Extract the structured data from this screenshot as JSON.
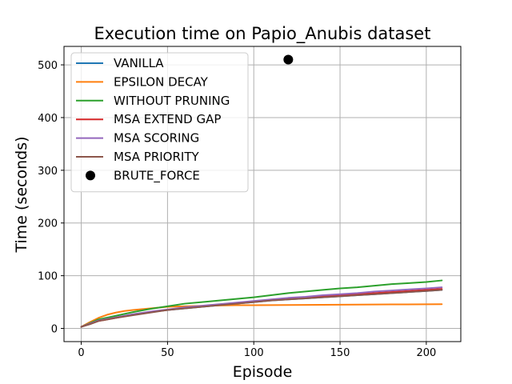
{
  "chart_data": {
    "type": "line",
    "title": "Execution time on Papio_Anubis dataset",
    "xlabel": "Episode",
    "ylabel": "Time (seconds)",
    "xlim": [
      -10,
      220
    ],
    "ylim": [
      -25,
      535
    ],
    "xticks": [
      0,
      50,
      100,
      150,
      200
    ],
    "yticks": [
      0,
      100,
      200,
      300,
      400,
      500
    ],
    "grid": true,
    "legend_position": "top-left",
    "series": [
      {
        "name": "VANILLA",
        "color": "#1f77b4",
        "kind": "line",
        "x": [
          0,
          5,
          10,
          20,
          30,
          40,
          50,
          60,
          70,
          80,
          90,
          100,
          110,
          120,
          130,
          140,
          150,
          160,
          170,
          180,
          190,
          200,
          209
        ],
        "y": [
          3,
          9,
          15,
          21,
          26,
          31,
          35,
          38,
          41,
          44,
          47,
          50,
          53,
          55,
          57,
          59,
          61,
          63,
          65,
          67,
          69,
          71,
          73
        ]
      },
      {
        "name": "EPSILON DECAY",
        "color": "#ff7f0e",
        "kind": "line",
        "x": [
          0,
          5,
          10,
          15,
          20,
          25,
          30,
          40,
          50,
          60,
          70,
          80,
          90,
          100,
          120,
          150,
          180,
          209
        ],
        "y": [
          3,
          12,
          20,
          26,
          30,
          33,
          35,
          38,
          41,
          42,
          43,
          43.5,
          44,
          44,
          44.5,
          45,
          45.5,
          46
        ]
      },
      {
        "name": "WITHOUT PRUNING",
        "color": "#2ca02c",
        "kind": "line",
        "x": [
          0,
          5,
          10,
          20,
          30,
          40,
          50,
          60,
          70,
          80,
          90,
          100,
          110,
          120,
          130,
          140,
          150,
          160,
          170,
          180,
          190,
          200,
          209
        ],
        "y": [
          3,
          10,
          17,
          24,
          31,
          37,
          42,
          47,
          50,
          53,
          56,
          59,
          63,
          67,
          70,
          73,
          76,
          78,
          81,
          84,
          86,
          88,
          91
        ]
      },
      {
        "name": "MSA EXTEND GAP",
        "color": "#d62728",
        "kind": "line",
        "x": [
          0,
          5,
          10,
          20,
          30,
          40,
          50,
          60,
          70,
          80,
          90,
          100,
          110,
          120,
          130,
          140,
          150,
          160,
          170,
          180,
          190,
          200,
          209
        ],
        "y": [
          3,
          9,
          14,
          20,
          26,
          31,
          35,
          39,
          42,
          45,
          48,
          51,
          54,
          56,
          58,
          61,
          63,
          65,
          67,
          69,
          71,
          73,
          75
        ]
      },
      {
        "name": "MSA SCORING",
        "color": "#9467bd",
        "kind": "line",
        "x": [
          0,
          5,
          10,
          20,
          30,
          40,
          50,
          60,
          70,
          80,
          90,
          100,
          110,
          120,
          130,
          140,
          150,
          160,
          170,
          180,
          190,
          200,
          209
        ],
        "y": [
          3,
          9,
          15,
          21,
          27,
          32,
          36,
          40,
          43,
          46,
          49,
          52,
          55,
          58,
          60,
          63,
          65,
          67,
          70,
          72,
          74,
          76,
          78
        ]
      },
      {
        "name": "MSA PRIORITY",
        "color": "#8c564b",
        "kind": "line",
        "x": [
          0,
          5,
          10,
          20,
          30,
          40,
          50,
          60,
          70,
          80,
          90,
          100,
          110,
          120,
          130,
          140,
          150,
          160,
          170,
          180,
          190,
          200,
          209
        ],
        "y": [
          3,
          8,
          14,
          20,
          25,
          30,
          35,
          38,
          41,
          44,
          47,
          50,
          53,
          55,
          57,
          59,
          61,
          63,
          65,
          67,
          69,
          71,
          73
        ]
      },
      {
        "name": "BRUTE_FORCE",
        "color": "#000000",
        "kind": "point",
        "x": [
          120
        ],
        "y": [
          510
        ]
      }
    ]
  }
}
